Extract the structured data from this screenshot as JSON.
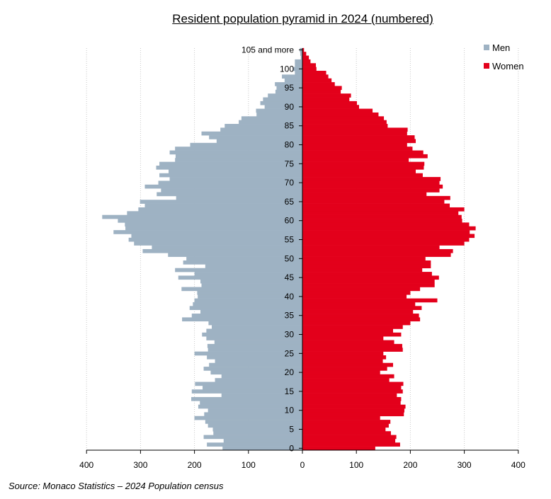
{
  "title": "Resident population pyramid in 2024 (numbered)",
  "source": "Source: Monaco Statistics – 2024 Population census",
  "chart_data": {
    "type": "bar",
    "orientation": "horizontal",
    "title": "Resident population pyramid in 2024 (numbered)",
    "xlim": [
      -400,
      400
    ],
    "x_ticks": [
      {
        "value": -400,
        "label": "400"
      },
      {
        "value": -300,
        "label": "300"
      },
      {
        "value": -200,
        "label": "200"
      },
      {
        "value": -100,
        "label": "100"
      },
      {
        "value": 0,
        "label": "0"
      },
      {
        "value": 100,
        "label": "100"
      },
      {
        "value": 200,
        "label": "200"
      },
      {
        "value": 300,
        "label": "300"
      },
      {
        "value": 400,
        "label": "400"
      }
    ],
    "y_ticks": [
      {
        "age": 0,
        "label": "0"
      },
      {
        "age": 5,
        "label": "5"
      },
      {
        "age": 10,
        "label": "10"
      },
      {
        "age": 15,
        "label": "15"
      },
      {
        "age": 20,
        "label": "20"
      },
      {
        "age": 25,
        "label": "25"
      },
      {
        "age": 30,
        "label": "30"
      },
      {
        "age": 35,
        "label": "35"
      },
      {
        "age": 40,
        "label": "40"
      },
      {
        "age": 45,
        "label": "45"
      },
      {
        "age": 50,
        "label": "50"
      },
      {
        "age": 55,
        "label": "55"
      },
      {
        "age": 60,
        "label": "60"
      },
      {
        "age": 65,
        "label": "65"
      },
      {
        "age": 70,
        "label": "70"
      },
      {
        "age": 75,
        "label": "75"
      },
      {
        "age": 80,
        "label": "80"
      },
      {
        "age": 85,
        "label": "85"
      },
      {
        "age": 90,
        "label": "90"
      },
      {
        "age": 95,
        "label": "95"
      },
      {
        "age": 100,
        "label": "100"
      },
      {
        "age": 105,
        "label": "105 and more"
      }
    ],
    "grid": true,
    "legend_position": "top-right",
    "series": [
      {
        "name": "Men",
        "color": "#9eb2c3",
        "values": [
          148,
          177,
          146,
          183,
          165,
          166,
          175,
          180,
          200,
          182,
          175,
          193,
          190,
          206,
          150,
          205,
          185,
          199,
          162,
          150,
          170,
          183,
          173,
          162,
          177,
          200,
          175,
          176,
          163,
          178,
          186,
          178,
          168,
          174,
          223,
          205,
          189,
          209,
          203,
          200,
          194,
          195,
          224,
          187,
          189,
          230,
          200,
          236,
          180,
          221,
          215,
          249,
          296,
          279,
          312,
          322,
          317,
          350,
          328,
          329,
          342,
          371,
          325,
          304,
          292,
          301,
          234,
          270,
          262,
          292,
          267,
          246,
          265,
          248,
          271,
          265,
          236,
          235,
          246,
          236,
          208,
          159,
          173,
          187,
          152,
          144,
          118,
          113,
          85,
          86,
          70,
          78,
          73,
          64,
          50,
          48,
          51,
          33,
          38,
          14,
          18,
          14,
          14,
          3,
          4,
          5
        ]
      },
      {
        "name": "Women",
        "color": "#e3001b",
        "values": [
          135,
          181,
          172,
          174,
          164,
          154,
          160,
          163,
          144,
          188,
          189,
          191,
          182,
          183,
          175,
          186,
          183,
          187,
          161,
          170,
          144,
          157,
          168,
          149,
          155,
          150,
          186,
          185,
          170,
          150,
          183,
          168,
          186,
          200,
          218,
          216,
          205,
          221,
          209,
          250,
          193,
          200,
          218,
          245,
          245,
          253,
          240,
          222,
          238,
          238,
          228,
          275,
          279,
          254,
          300,
          309,
          319,
          310,
          321,
          309,
          296,
          295,
          289,
          300,
          273,
          263,
          274,
          230,
          254,
          260,
          254,
          256,
          223,
          210,
          225,
          226,
          197,
          232,
          224,
          204,
          194,
          210,
          208,
          194,
          195,
          158,
          156,
          151,
          141,
          130,
          105,
          101,
          87,
          90,
          71,
          73,
          60,
          54,
          48,
          44,
          26,
          25,
          15,
          12,
          7,
          3
        ]
      }
    ]
  }
}
